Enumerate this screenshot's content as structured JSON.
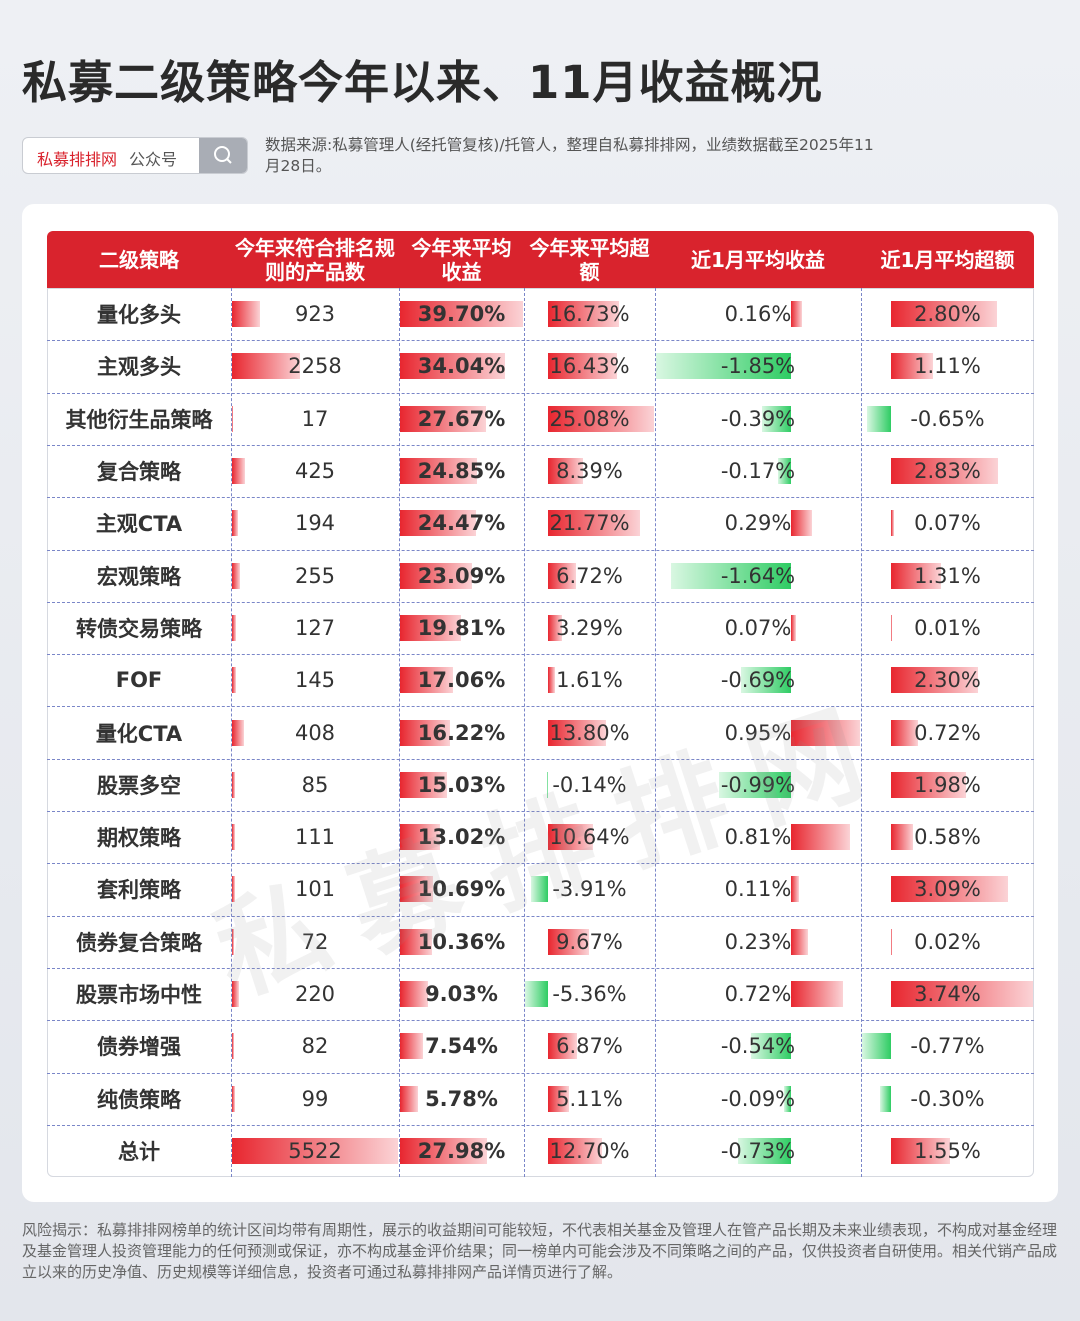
{
  "header": {
    "title": "私募二级策略今年以来、11月收益概况",
    "search_brand": "私募排排网",
    "search_suffix": "公众号",
    "source": "数据来源:私募管理人(经托管复核)/托管人，整理自私募排排网，业绩数据截至2025年11月28日。"
  },
  "watermark": "私募排排网",
  "table": {
    "columns": [
      "二级策略",
      "今年来符合排名规则的产品数",
      "今年来平均收益",
      "今年来平均超额",
      "近1月平均收益",
      "近1月平均超额"
    ],
    "rows": [
      [
        "量化多头",
        923,
        {
          "value": 39.7,
          "label": "39.70%"
        },
        {
          "value": 16.73,
          "label": "16.73%"
        },
        {
          "value": 0.16,
          "label": "0.16%"
        },
        {
          "value": 2.8,
          "label": "2.80%"
        }
      ],
      [
        "主观多头",
        2258,
        {
          "value": 34.04,
          "label": "34.04%"
        },
        {
          "value": 16.43,
          "label": "16.43%"
        },
        {
          "value": -1.85,
          "label": "-1.85%"
        },
        {
          "value": 1.11,
          "label": "1.11%"
        }
      ],
      [
        "其他衍生品策略",
        17,
        {
          "value": 27.67,
          "label": "27.67%"
        },
        {
          "value": 25.08,
          "label": "25.08%"
        },
        {
          "value": -0.39,
          "label": "-0.39%"
        },
        {
          "value": -0.65,
          "label": "-0.65%"
        }
      ],
      [
        "复合策略",
        425,
        {
          "value": 24.85,
          "label": "24.85%"
        },
        {
          "value": 8.39,
          "label": "8.39%"
        },
        {
          "value": -0.17,
          "label": "-0.17%"
        },
        {
          "value": 2.83,
          "label": "2.83%"
        }
      ],
      [
        "主观CTA",
        194,
        {
          "value": 24.47,
          "label": "24.47%"
        },
        {
          "value": 21.77,
          "label": "21.77%"
        },
        {
          "value": 0.29,
          "label": "0.29%"
        },
        {
          "value": 0.07,
          "label": "0.07%"
        }
      ],
      [
        "宏观策略",
        255,
        {
          "value": 23.09,
          "label": "23.09%"
        },
        {
          "value": 6.72,
          "label": "6.72%"
        },
        {
          "value": -1.64,
          "label": "-1.64%"
        },
        {
          "value": 1.31,
          "label": "1.31%"
        }
      ],
      [
        "转债交易策略",
        127,
        {
          "value": 19.81,
          "label": "19.81%"
        },
        {
          "value": 3.29,
          "label": "3.29%"
        },
        {
          "value": 0.07,
          "label": "0.07%"
        },
        {
          "value": 0.01,
          "label": "0.01%"
        }
      ],
      [
        "FOF",
        145,
        {
          "value": 17.06,
          "label": "17.06%"
        },
        {
          "value": 1.61,
          "label": "1.61%"
        },
        {
          "value": -0.69,
          "label": "-0.69%"
        },
        {
          "value": 2.3,
          "label": "2.30%"
        }
      ],
      [
        "量化CTA",
        408,
        {
          "value": 16.22,
          "label": "16.22%"
        },
        {
          "value": 13.8,
          "label": "13.80%"
        },
        {
          "value": 0.95,
          "label": "0.95%"
        },
        {
          "value": 0.72,
          "label": "0.72%"
        }
      ],
      [
        "股票多空",
        85,
        {
          "value": 15.03,
          "label": "15.03%"
        },
        {
          "value": -0.14,
          "label": "-0.14%"
        },
        {
          "value": -0.99,
          "label": "-0.99%"
        },
        {
          "value": 1.98,
          "label": "1.98%"
        }
      ],
      [
        "期权策略",
        111,
        {
          "value": 13.02,
          "label": "13.02%"
        },
        {
          "value": 10.64,
          "label": "10.64%"
        },
        {
          "value": 0.81,
          "label": "0.81%"
        },
        {
          "value": 0.58,
          "label": "0.58%"
        }
      ],
      [
        "套利策略",
        101,
        {
          "value": 10.69,
          "label": "10.69%"
        },
        {
          "value": -3.91,
          "label": "-3.91%"
        },
        {
          "value": 0.11,
          "label": "0.11%"
        },
        {
          "value": 3.09,
          "label": "3.09%"
        }
      ],
      [
        "债券复合策略",
        72,
        {
          "value": 10.36,
          "label": "10.36%"
        },
        {
          "value": 9.67,
          "label": "9.67%"
        },
        {
          "value": 0.23,
          "label": "0.23%"
        },
        {
          "value": 0.02,
          "label": "0.02%"
        }
      ],
      [
        "股票市场中性",
        220,
        {
          "value": 9.03,
          "label": "9.03%"
        },
        {
          "value": -5.36,
          "label": "-5.36%"
        },
        {
          "value": 0.72,
          "label": "0.72%"
        },
        {
          "value": 3.74,
          "label": "3.74%"
        }
      ],
      [
        "债券增强",
        82,
        {
          "value": 7.54,
          "label": "7.54%"
        },
        {
          "value": 6.87,
          "label": "6.87%"
        },
        {
          "value": -0.54,
          "label": "-0.54%"
        },
        {
          "value": -0.77,
          "label": "-0.77%"
        }
      ],
      [
        "纯债策略",
        99,
        {
          "value": 5.78,
          "label": "5.78%"
        },
        {
          "value": 5.11,
          "label": "5.11%"
        },
        {
          "value": -0.09,
          "label": "-0.09%"
        },
        {
          "value": -0.3,
          "label": "-0.30%"
        }
      ],
      [
        "总计",
        5522,
        {
          "value": 27.98,
          "label": "27.98%"
        },
        {
          "value": 12.7,
          "label": "12.70%"
        },
        {
          "value": -0.73,
          "label": "-0.73%"
        },
        {
          "value": 1.55,
          "label": "1.55%"
        }
      ]
    ]
  },
  "footer": {
    "disclaimer": "风险揭示：私募排排网榜单的统计区间均带有周期性，展示的收益期间可能较短，不代表相关基金及管理人在管产品长期及未来业绩表现，不构成对基金经理及基金管理人投资管理能力的任何预测或保证，亦不构成基金评价结果；同一榜单内可能会涉及不同策略之间的产品，仅供投资者自研使用。相关代销产品成立以来的历史净值、历史规模等详细信息，投资者可通过私募排排网产品详情页进行了解。"
  }
}
